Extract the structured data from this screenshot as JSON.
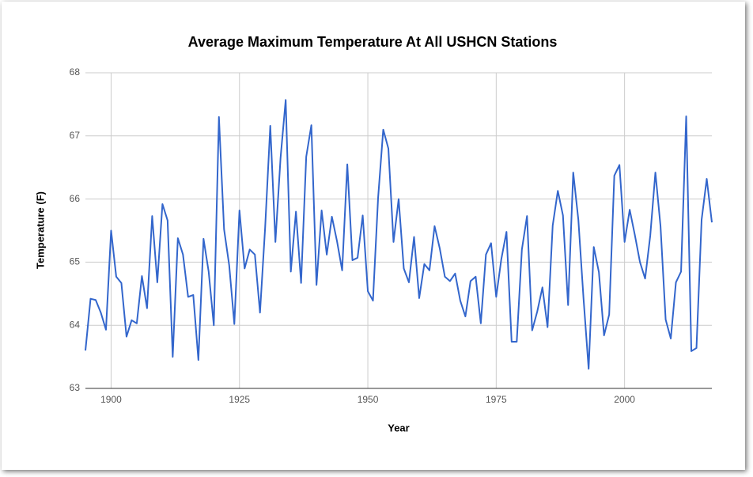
{
  "chart_data": {
    "type": "line",
    "title": "Average Maximum Temperature At All USHCN Stations",
    "x_label": "Year",
    "y_label": "Temperature (F)",
    "x": [
      1895,
      1896,
      1897,
      1898,
      1899,
      1900,
      1901,
      1902,
      1903,
      1904,
      1905,
      1906,
      1907,
      1908,
      1909,
      1910,
      1911,
      1912,
      1913,
      1914,
      1915,
      1916,
      1917,
      1918,
      1919,
      1920,
      1921,
      1922,
      1923,
      1924,
      1925,
      1926,
      1927,
      1928,
      1929,
      1930,
      1931,
      1932,
      1933,
      1934,
      1935,
      1936,
      1937,
      1938,
      1939,
      1940,
      1941,
      1942,
      1943,
      1944,
      1945,
      1946,
      1947,
      1948,
      1949,
      1950,
      1951,
      1952,
      1953,
      1954,
      1955,
      1956,
      1957,
      1958,
      1959,
      1960,
      1961,
      1962,
      1963,
      1964,
      1965,
      1966,
      1967,
      1968,
      1969,
      1970,
      1971,
      1972,
      1973,
      1974,
      1975,
      1976,
      1977,
      1978,
      1979,
      1980,
      1981,
      1982,
      1983,
      1984,
      1985,
      1986,
      1987,
      1988,
      1989,
      1990,
      1991,
      1992,
      1993,
      1994,
      1995,
      1996,
      1997,
      1998,
      1999,
      2000,
      2001,
      2002,
      2003,
      2004,
      2005,
      2006,
      2007,
      2008,
      2009,
      2010,
      2011,
      2012,
      2013,
      2014,
      2015,
      2016,
      2017
    ],
    "series": [
      {
        "name": "Temperature",
        "color": "#3366cc",
        "values": [
          63.6,
          64.42,
          64.4,
          64.2,
          63.93,
          65.5,
          64.77,
          64.67,
          63.82,
          64.08,
          64.03,
          64.78,
          64.27,
          65.73,
          64.68,
          65.92,
          65.66,
          63.5,
          65.38,
          65.12,
          64.45,
          64.48,
          63.45,
          65.37,
          64.85,
          64.0,
          67.3,
          65.52,
          64.95,
          64.02,
          65.82,
          64.9,
          65.2,
          65.12,
          64.2,
          65.55,
          67.16,
          65.32,
          66.65,
          67.57,
          64.85,
          65.8,
          64.67,
          66.67,
          67.17,
          64.64,
          65.82,
          65.12,
          65.72,
          65.33,
          64.87,
          66.55,
          65.03,
          65.07,
          65.74,
          64.54,
          64.39,
          66.02,
          67.1,
          66.8,
          65.32,
          66.0,
          64.9,
          64.68,
          65.4,
          64.43,
          64.97,
          64.87,
          65.57,
          65.22,
          64.77,
          64.7,
          64.82,
          64.39,
          64.14,
          64.7,
          64.77,
          64.03,
          65.12,
          65.3,
          64.45,
          65.05,
          65.48,
          63.74,
          63.74,
          65.2,
          65.73,
          63.92,
          64.22,
          64.6,
          63.97,
          65.58,
          66.13,
          65.74,
          64.32,
          66.42,
          65.67,
          64.43,
          63.31,
          65.24,
          64.84,
          63.84,
          64.17,
          66.37,
          66.54,
          65.32,
          65.83,
          65.43,
          65.0,
          64.74,
          65.42,
          66.42,
          65.57,
          64.09,
          63.79,
          64.68,
          64.85,
          67.31,
          63.59,
          63.64,
          65.67,
          66.32,
          65.63
        ]
      }
    ],
    "xlim": [
      1895,
      2017
    ],
    "xticks": [
      1900,
      1925,
      1950,
      1975,
      2000
    ],
    "ylim": [
      63,
      68
    ],
    "yticks": [
      63,
      64,
      65,
      66,
      67,
      68
    ],
    "grid": true
  }
}
